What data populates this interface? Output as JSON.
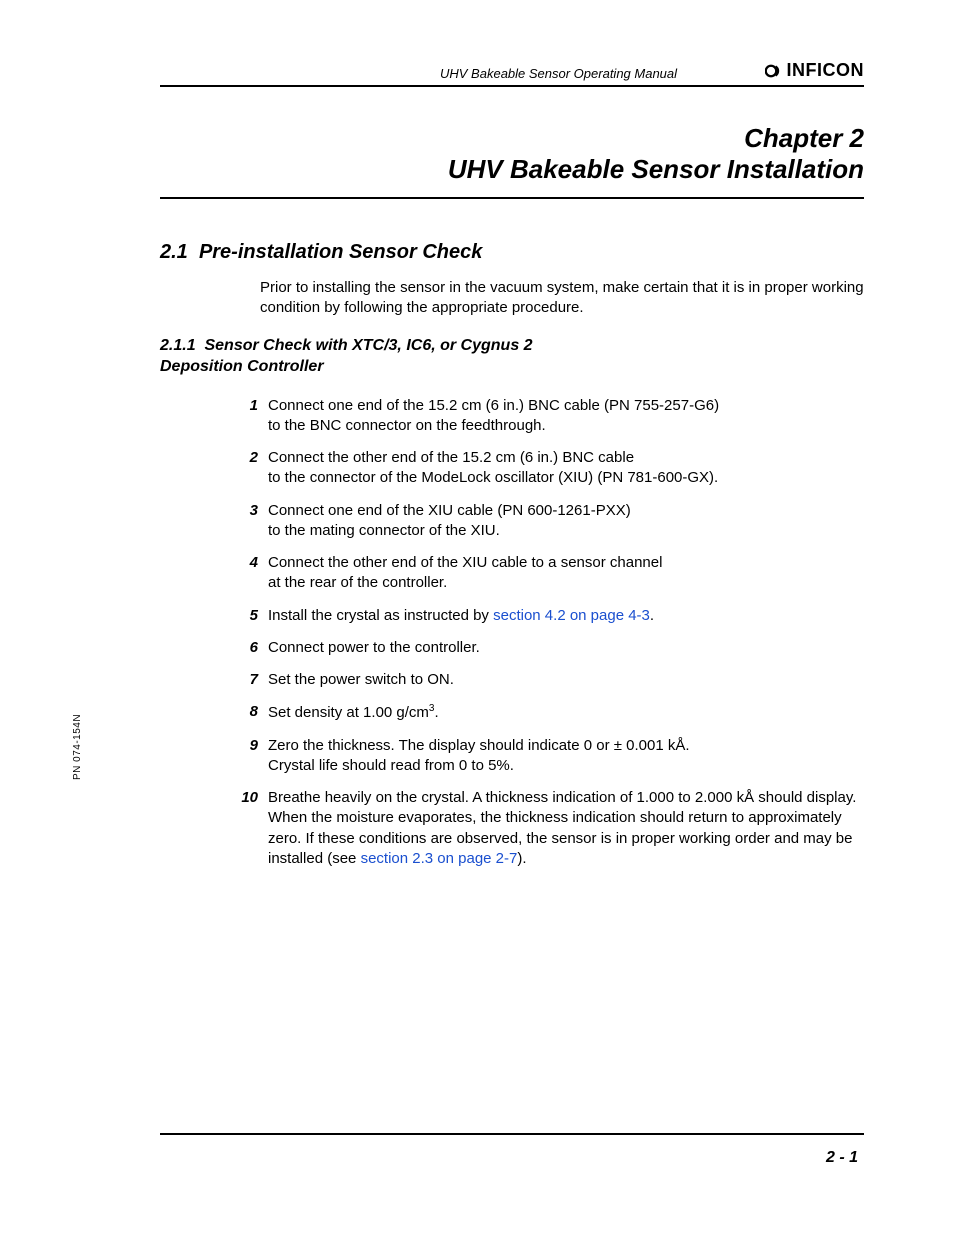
{
  "header": {
    "running_title": "UHV Bakeable Sensor Operating Manual",
    "brand": "INFICON"
  },
  "chapter": {
    "label": "Chapter 2",
    "title": "UHV Bakeable Sensor Installation"
  },
  "section1": {
    "number": "2.1",
    "title": "Pre-installation Sensor Check",
    "intro": "Prior to installing the sensor in the vacuum system, make certain that it is in proper working condition by following the appropriate procedure."
  },
  "section11": {
    "number": "2.1.1",
    "title": "Sensor Check with XTC/3, IC6, or Cygnus 2 Deposition Controller"
  },
  "steps": [
    {
      "n": "1",
      "a": "Connect one end of the 15.2 cm (6 in.) BNC cable (PN 755-257-G6)",
      "b": "to the BNC connector on the feedthrough."
    },
    {
      "n": "2",
      "a": "Connect the other end of the 15.2 cm (6 in.) BNC cable",
      "b": "to the connector of the ModeLock oscillator (XIU) (PN 781-600-GX)."
    },
    {
      "n": "3",
      "a": "Connect one end of the XIU cable (PN 600-1261-PXX)",
      "b": "to the mating connector of the XIU."
    },
    {
      "n": "4",
      "a": "Connect the other end of the XIU cable to a sensor channel",
      "b": "at the rear of the controller."
    },
    {
      "n": "5",
      "a": "Install the crystal as instructed by ",
      "link": "section 4.2 on page 4-3",
      "post": "."
    },
    {
      "n": "6",
      "a": "Connect power to the controller."
    },
    {
      "n": "7",
      "a": "Set the power switch to ON."
    },
    {
      "n": "8",
      "a": "Set density at 1.00 g/cm",
      "sup": "3",
      "post": "."
    },
    {
      "n": "9",
      "a": "Zero the thickness. The display should indicate 0 or ± 0.001 kÅ.",
      "b": "Crystal life should read from 0 to 5%."
    },
    {
      "n": "10",
      "a": "Breathe heavily on the crystal. A thickness indication of 1.000 to 2.000 kÅ should display. When the moisture evaporates, the thickness indication should return to approximately zero. If these conditions are observed, the sensor is in proper working order and may be installed (see ",
      "link": "section 2.3 on page 2-7",
      "post": ")."
    }
  ],
  "footer": {
    "page": "2 - 1",
    "side_label": "PN 074-154N"
  },
  "colors": {
    "link": "#1a4fcf",
    "text": "#000000",
    "rule": "#000000"
  }
}
